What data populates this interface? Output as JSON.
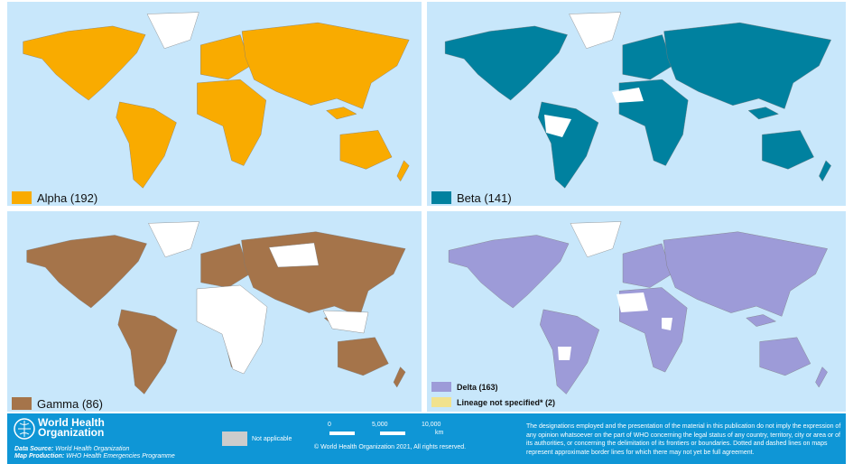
{
  "panels": [
    {
      "legend": [
        {
          "label": "Alpha (192)",
          "color": "#f9ab00"
        }
      ],
      "color": "#f9ab00"
    },
    {
      "legend": [
        {
          "label": "Beta (141)",
          "color": "#00819f"
        }
      ],
      "color": "#00819f"
    },
    {
      "legend": [
        {
          "label": "Gamma (86)",
          "color": "#a5744a"
        }
      ],
      "color": "#a5744a"
    },
    {
      "legend": [
        {
          "label": "Delta (163)",
          "color": "#9d9bd8"
        },
        {
          "label": "Lineage not specified* (2)",
          "color": "#f1e28e"
        }
      ],
      "color": "#9d9bd8"
    }
  ],
  "footer": {
    "org_line1": "World Health",
    "org_line2": "Organization",
    "data_source_key": "Data Source:",
    "data_source": "World Health Organization",
    "map_production_key": "Map Production:",
    "map_production": "WHO Health Emergencies Programme",
    "not_applicable": {
      "label": "Not applicable",
      "color": "#cccccc"
    },
    "scale": {
      "labels": [
        "0",
        "5,000",
        "10,000"
      ],
      "unit": "km"
    },
    "copyright": "© World Health Organization 2021, All rights reserved.",
    "disclaimer": "The designations employed and the presentation of the material in this publication do not imply the expression of any opinion whatsoever on the part of WHO concerning the legal status of any country, territory, city or area or of its authorities, or concerning the delimitation of its frontiers or boundaries. Dotted and dashed lines on maps represent approximate border lines for which there may not yet be full agreement."
  }
}
